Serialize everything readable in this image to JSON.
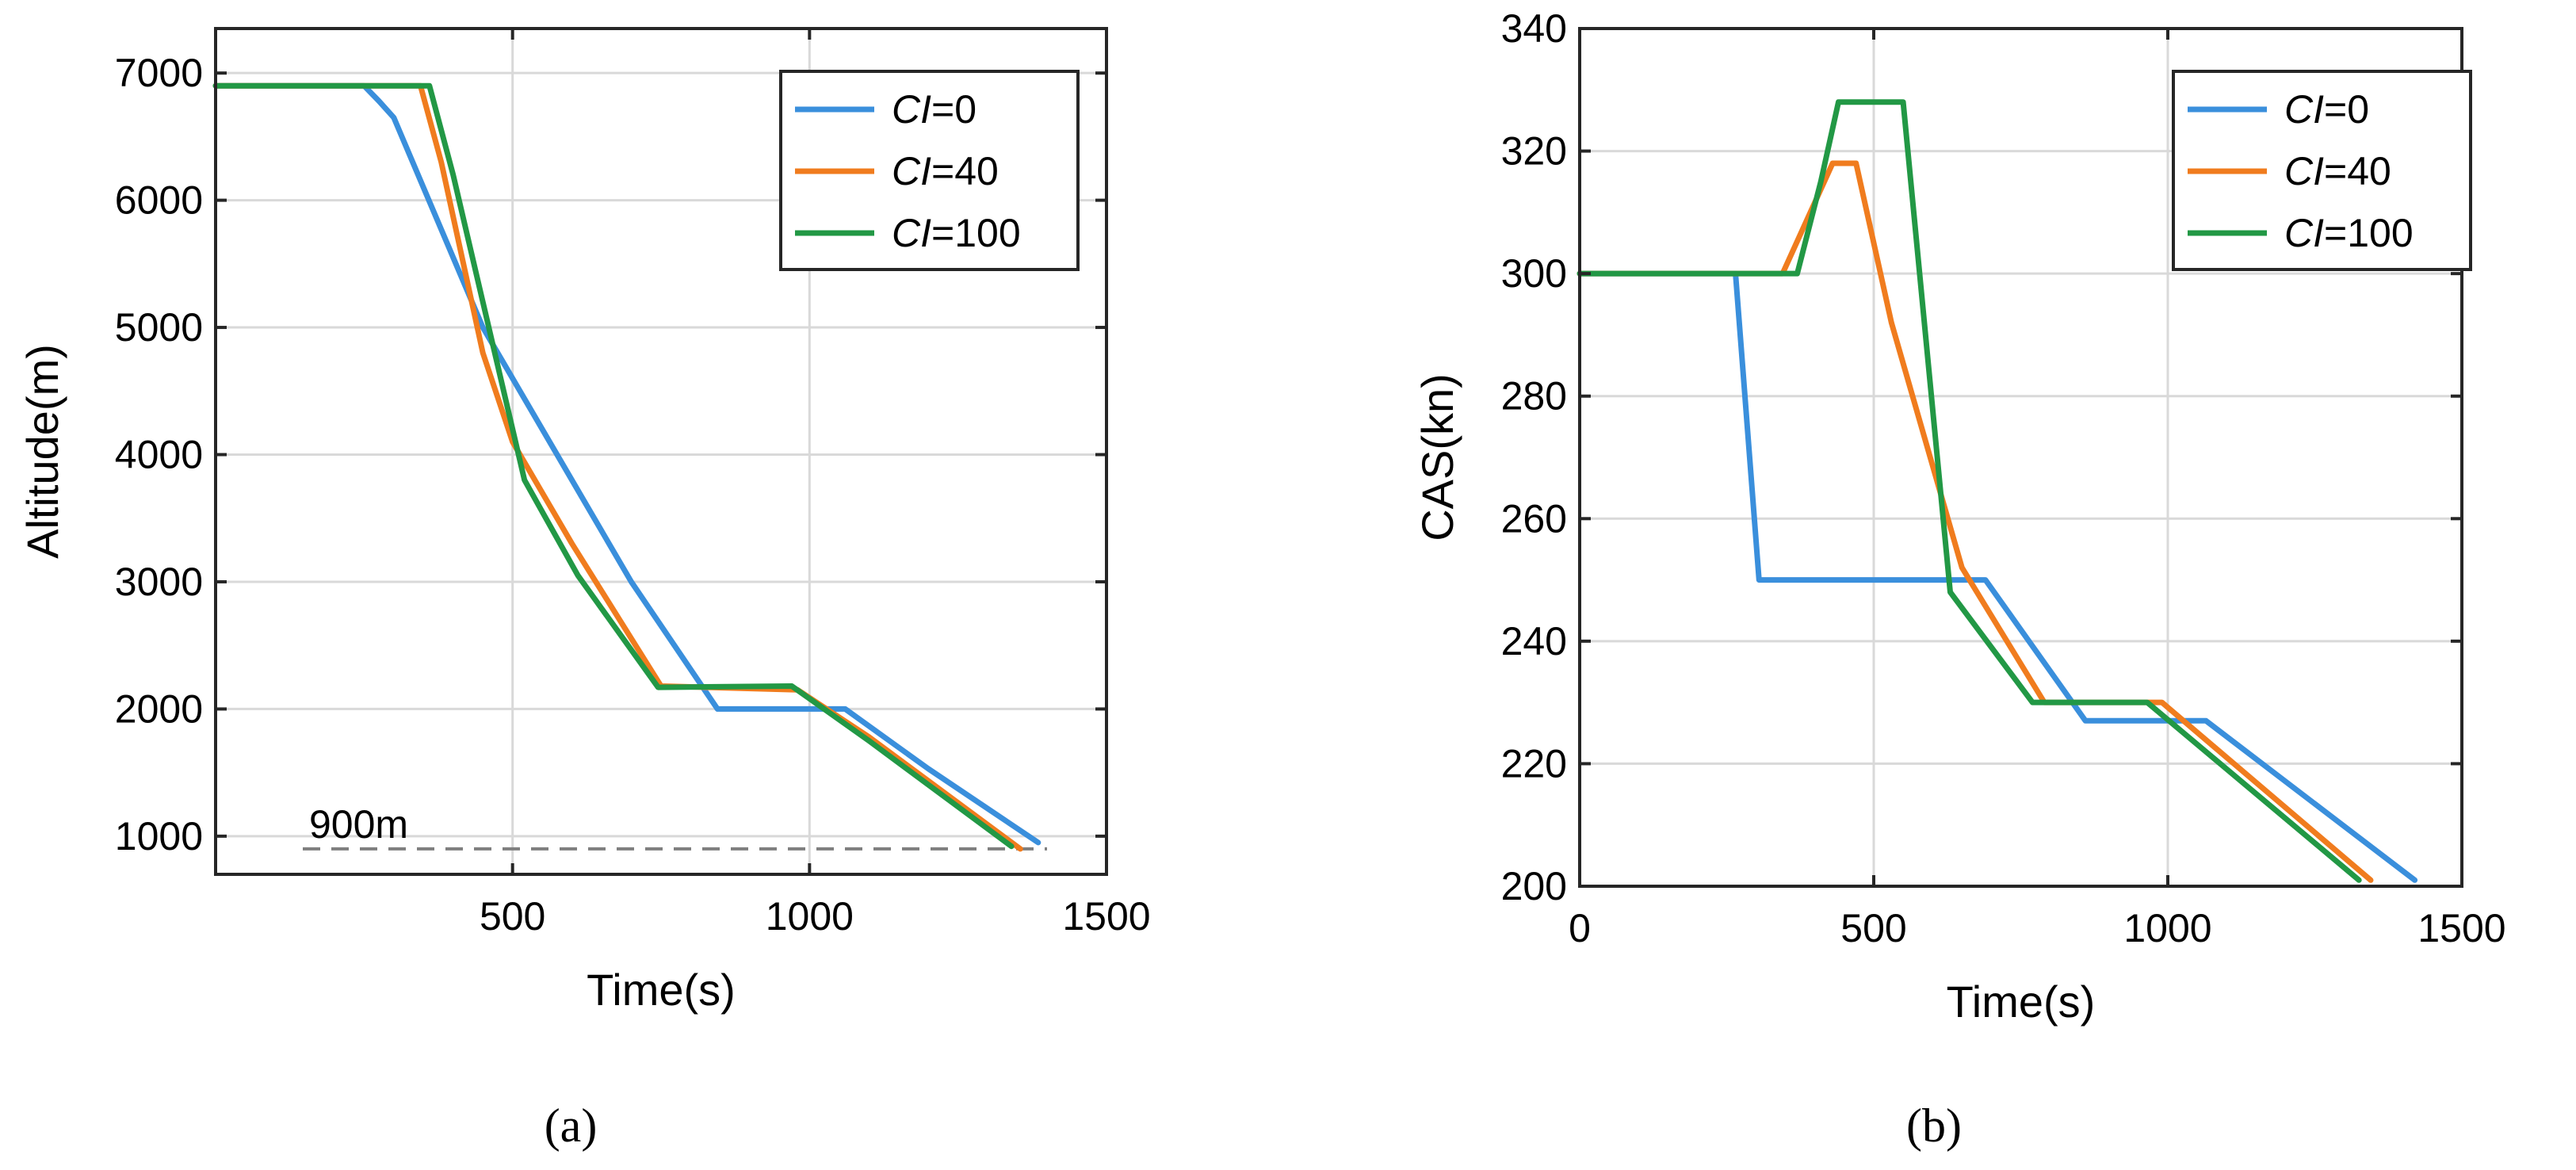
{
  "colors": {
    "ci0": "#3a8fdc",
    "ci40": "#f07c1e",
    "ci100": "#229845",
    "ref_line": "#7f7f7f"
  },
  "chart_data": [
    {
      "id": "a",
      "type": "line",
      "caption": "(a)",
      "title": "",
      "xlabel": "Time(s)",
      "ylabel": "Altitude(m)",
      "xlim": [
        0,
        1500
      ],
      "ylim": [
        700,
        7350
      ],
      "xticks": [
        500,
        1000,
        1500
      ],
      "yticks": [
        1000,
        2000,
        3000,
        4000,
        5000,
        6000,
        7000
      ],
      "grid": true,
      "legend_position": "top-right",
      "series": [
        {
          "name_italic": "CI",
          "name_rest": "=0",
          "color_key": "ci0",
          "x": [
            0,
            250,
            275,
            300,
            450,
            700,
            845,
            1060,
            1200,
            1385
          ],
          "y": [
            6900,
            6900,
            6780,
            6650,
            5000,
            3000,
            2000,
            2000,
            1530,
            950
          ]
        },
        {
          "name_italic": "CI",
          "name_rest": "=40",
          "color_key": "ci40",
          "x": [
            0,
            345,
            380,
            450,
            500,
            600,
            750,
            980,
            1100,
            1355
          ],
          "y": [
            6900,
            6900,
            6300,
            4800,
            4100,
            3300,
            2180,
            2150,
            1780,
            900
          ]
        },
        {
          "name_italic": "CI",
          "name_rest": "=100",
          "color_key": "ci100",
          "x": [
            0,
            360,
            400,
            450,
            520,
            610,
            745,
            970,
            1100,
            1340
          ],
          "y": [
            6900,
            6900,
            6200,
            5200,
            3800,
            3050,
            2170,
            2180,
            1750,
            920
          ]
        }
      ],
      "reference_line": {
        "y": 900,
        "label": "900m"
      }
    },
    {
      "id": "b",
      "type": "line",
      "caption": "(b)",
      "title": "",
      "xlabel": "Time(s)",
      "ylabel": "CAS(kn)",
      "xlim": [
        0,
        1500
      ],
      "ylim": [
        200,
        340
      ],
      "xticks": [
        0,
        500,
        1000,
        1500
      ],
      "yticks": [
        200,
        220,
        240,
        260,
        280,
        300,
        320,
        340
      ],
      "grid": true,
      "legend_position": "top-right",
      "series": [
        {
          "name_italic": "CI",
          "name_rest": "=0",
          "color_key": "ci0",
          "x": [
            0,
            265,
            305,
            690,
            860,
            1065,
            1420
          ],
          "y": [
            300,
            300,
            250,
            250,
            227,
            227,
            201
          ]
        },
        {
          "name_italic": "CI",
          "name_rest": "=40",
          "color_key": "ci40",
          "x": [
            0,
            345,
            430,
            470,
            530,
            650,
            790,
            990,
            1345
          ],
          "y": [
            300,
            300,
            318,
            318,
            292,
            252,
            230,
            230,
            201
          ]
        },
        {
          "name_italic": "CI",
          "name_rest": "=100",
          "color_key": "ci100",
          "x": [
            0,
            370,
            410,
            440,
            550,
            630,
            770,
            965,
            1325
          ],
          "y": [
            300,
            300,
            315,
            328,
            328,
            248,
            230,
            230,
            201
          ]
        }
      ]
    }
  ]
}
